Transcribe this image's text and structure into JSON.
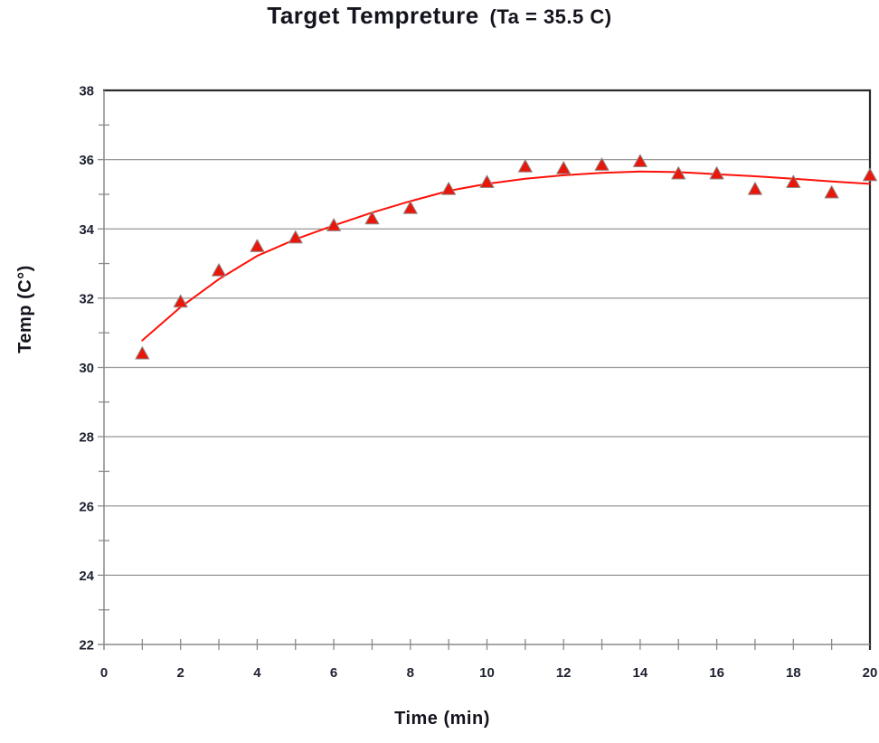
{
  "title": {
    "main": "Target Tempreture",
    "paren": "(Ta = 35.5 C)"
  },
  "chart_data": {
    "type": "scatter",
    "title": "Target Tempreture (Ta = 35.5 C)",
    "xlabel": "Time (min)",
    "ylabel": "Temp (C°)",
    "xlim": [
      0,
      20
    ],
    "ylim": [
      22,
      38
    ],
    "x_tick_labels": [
      0,
      2,
      4,
      6,
      8,
      10,
      12,
      14,
      16,
      18,
      20
    ],
    "x_minor_tick_step": 1,
    "y_tick_labels": [
      22,
      24,
      26,
      28,
      30,
      32,
      34,
      36,
      38
    ],
    "y_minor_tick_step": 1,
    "grid": "horizontal-major",
    "legend": "none",
    "series": [
      {
        "name": "measured-temperature",
        "style": "markers",
        "marker": "triangle-up",
        "x": [
          1,
          2,
          3,
          4,
          5,
          6,
          7,
          8,
          9,
          10,
          11,
          12,
          13,
          14,
          15,
          16,
          17,
          18,
          19,
          20
        ],
        "y": [
          30.4,
          31.9,
          32.8,
          33.5,
          33.75,
          34.1,
          34.3,
          34.6,
          35.15,
          35.35,
          35.8,
          35.75,
          35.85,
          35.95,
          35.6,
          35.6,
          35.15,
          35.35,
          35.05,
          35.55
        ]
      },
      {
        "name": "fitted-trend",
        "style": "line",
        "x": [
          1,
          2,
          3,
          4,
          5,
          6,
          7,
          8,
          9,
          10,
          11,
          12,
          13,
          14,
          15,
          16,
          17,
          18,
          19,
          20
        ],
        "y": [
          30.78,
          31.74,
          32.55,
          33.22,
          33.7,
          34.1,
          34.47,
          34.8,
          35.1,
          35.3,
          35.45,
          35.55,
          35.62,
          35.66,
          35.64,
          35.58,
          35.52,
          35.45,
          35.37,
          35.3
        ]
      }
    ]
  },
  "colors": {
    "marker_fill": "#e8170c",
    "marker_stroke": "#8f8f8f",
    "trend_line": "#ff1008",
    "gridline": "#969696",
    "axis_line": "#8a8a8a",
    "plot_border": "#2a2a2a",
    "tick_label": "#1d2130",
    "title_text": "#14141e"
  }
}
